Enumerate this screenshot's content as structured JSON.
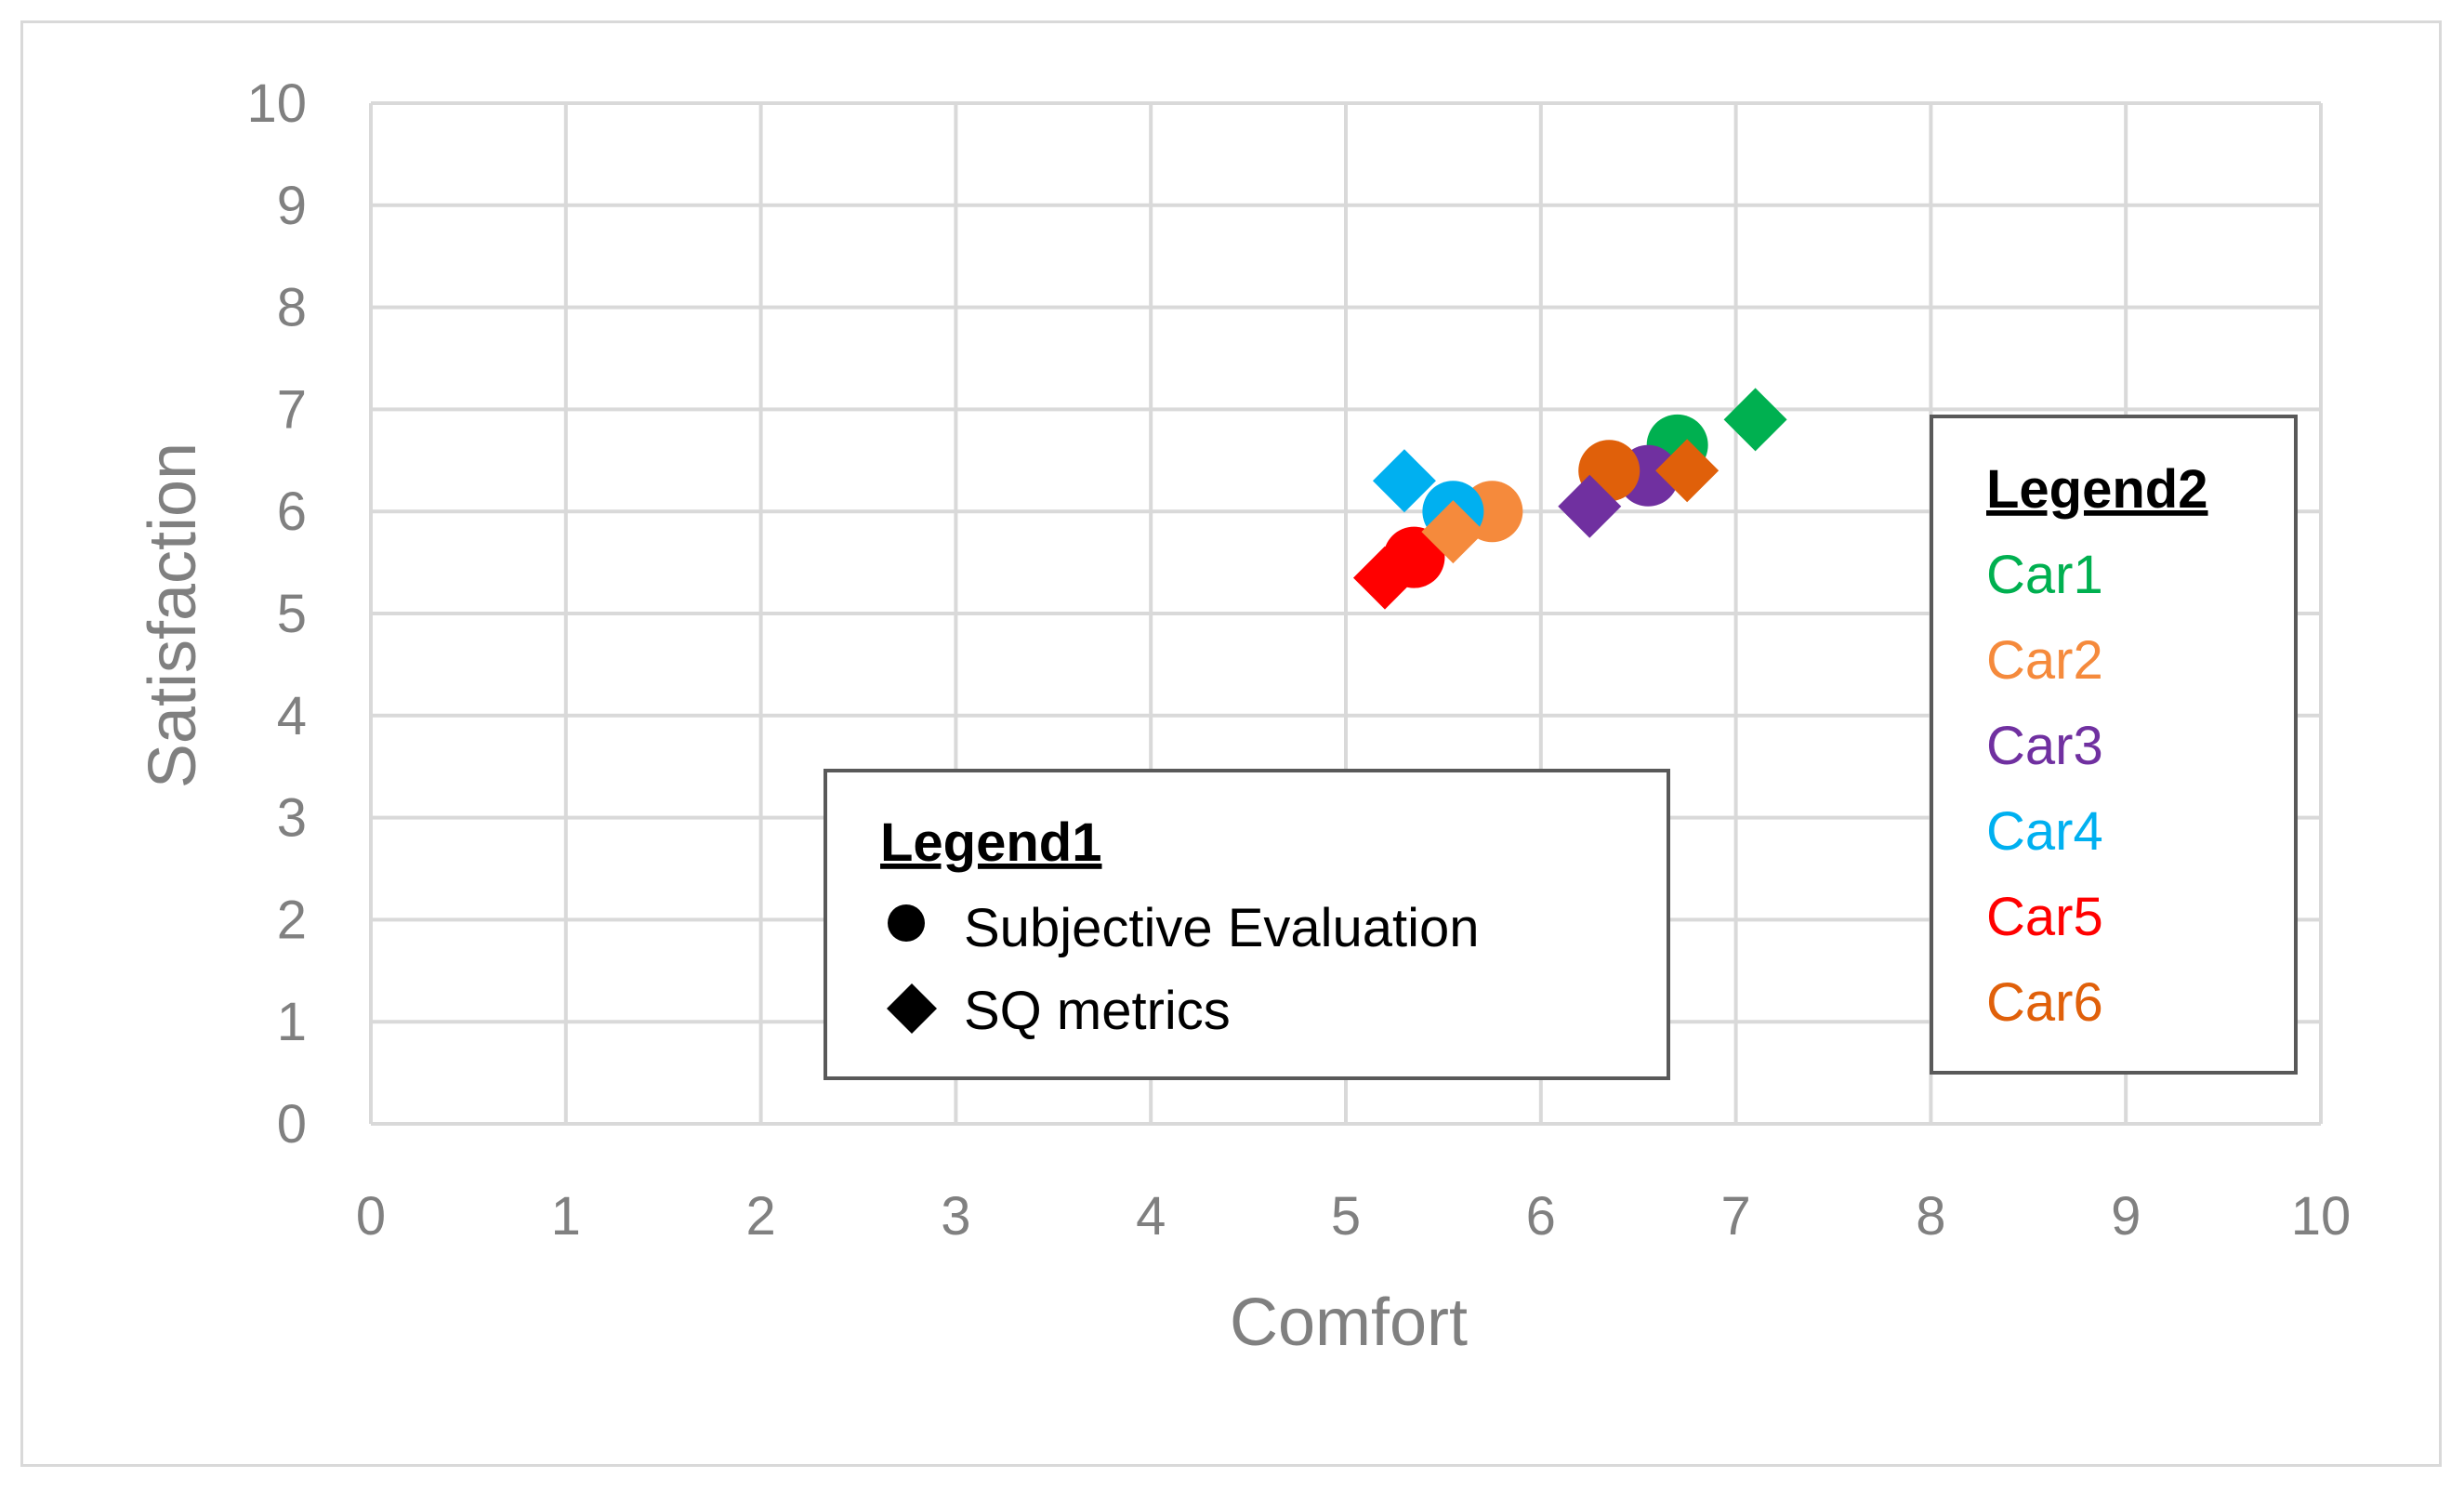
{
  "chart_data": {
    "type": "scatter",
    "title": "",
    "xlabel": "Comfort",
    "ylabel": "Satisfaction",
    "xlim": [
      0,
      10
    ],
    "ylim": [
      0,
      10
    ],
    "x_ticks": [
      "0",
      "1",
      "2",
      "3",
      "4",
      "5",
      "6",
      "7",
      "8",
      "9",
      "10"
    ],
    "y_ticks": [
      "0",
      "1",
      "2",
      "3",
      "4",
      "5",
      "6",
      "7",
      "8",
      "9",
      "10"
    ],
    "grid": true,
    "series": [
      {
        "name": "Car1",
        "color": "#00b050",
        "subjective": {
          "x": 6.7,
          "y": 6.65
        },
        "sq": {
          "x": 7.1,
          "y": 6.9
        }
      },
      {
        "name": "Car2",
        "color": "#f58a3c",
        "subjective": {
          "x": 5.75,
          "y": 6.0
        },
        "sq": {
          "x": 5.55,
          "y": 5.8
        }
      },
      {
        "name": "Car3",
        "color": "#7030a0",
        "subjective": {
          "x": 6.55,
          "y": 6.35
        },
        "sq": {
          "x": 6.25,
          "y": 6.05
        }
      },
      {
        "name": "Car4",
        "color": "#00b0f0",
        "subjective": {
          "x": 5.55,
          "y": 6.0
        },
        "sq": {
          "x": 5.3,
          "y": 6.3
        }
      },
      {
        "name": "Car5",
        "color": "#ff0000",
        "subjective": {
          "x": 5.35,
          "y": 5.55
        },
        "sq": {
          "x": 5.2,
          "y": 5.35
        }
      },
      {
        "name": "Car6",
        "color": "#e0600a",
        "subjective": {
          "x": 6.35,
          "y": 6.4
        },
        "sq": {
          "x": 6.75,
          "y": 6.4
        }
      }
    ],
    "legend1": {
      "title": "Legend1",
      "entries": [
        {
          "label": "Subjective Evaluation",
          "marker": "circle"
        },
        {
          "label": "SQ metrics",
          "marker": "diamond"
        }
      ],
      "placement": "bottom-center"
    },
    "legend2": {
      "title": "Legend2",
      "entries": [
        "Car1",
        "Car2",
        "Car3",
        "Car4",
        "Car5",
        "Car6"
      ],
      "placement": "right"
    }
  }
}
